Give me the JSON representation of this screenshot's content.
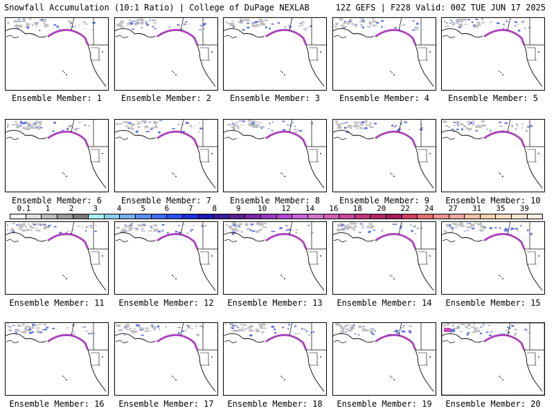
{
  "header": {
    "left": "Snowfall Accumulation (10:1 Ratio) | College of DuPage NEXLAB",
    "right": "12Z GEFS | F228 Valid: 00Z TUE JUN 17 2025"
  },
  "members": [
    {
      "label": "Ensemble Member: 1",
      "icon": "map-icon"
    },
    {
      "label": "Ensemble Member: 2",
      "icon": "map-icon"
    },
    {
      "label": "Ensemble Member: 3",
      "icon": "map-icon"
    },
    {
      "label": "Ensemble Member: 4",
      "icon": "map-icon"
    },
    {
      "label": "Ensemble Member: 5",
      "icon": "map-icon"
    },
    {
      "label": "Ensemble Member: 6",
      "icon": "map-icon"
    },
    {
      "label": "Ensemble Member: 7",
      "icon": "map-icon"
    },
    {
      "label": "Ensemble Member: 8",
      "icon": "map-icon"
    },
    {
      "label": "Ensemble Member: 9",
      "icon": "map-icon"
    },
    {
      "label": "Ensemble Member: 10",
      "icon": "map-icon"
    },
    {
      "label": "Ensemble Member: 11",
      "icon": "map-icon"
    },
    {
      "label": "Ensemble Member: 12",
      "icon": "map-icon"
    },
    {
      "label": "Ensemble Member: 13",
      "icon": "map-icon"
    },
    {
      "label": "Ensemble Member: 14",
      "icon": "map-icon"
    },
    {
      "label": "Ensemble Member: 15",
      "icon": "map-icon"
    },
    {
      "label": "Ensemble Member: 16",
      "icon": "map-icon"
    },
    {
      "label": "Ensemble Member: 17",
      "icon": "map-icon"
    },
    {
      "label": "Ensemble Member: 18",
      "icon": "map-icon"
    },
    {
      "label": "Ensemble Member: 19",
      "icon": "map-icon"
    },
    {
      "label": "Ensemble Member: 20",
      "icon": "map-icon"
    }
  ],
  "legend": {
    "ticks": [
      "0.1",
      "1",
      "2",
      "3",
      "4",
      "5",
      "6",
      "7",
      "8",
      "9",
      "10",
      "12",
      "14",
      "16",
      "18",
      "20",
      "22",
      "24",
      "27",
      "31",
      "35",
      "39"
    ],
    "colors": [
      "#ffffff",
      "#e0e0e0",
      "#bdbdbd",
      "#9a9a9a",
      "#7a7a7a",
      "#a8f0f0",
      "#8ecfee",
      "#74b0ee",
      "#5a8ff0",
      "#4070f0",
      "#2a50f0",
      "#1e30d8",
      "#1a1ab8",
      "#3a1a9a",
      "#5a2090",
      "#7a2aa8",
      "#9838c0",
      "#b048d0",
      "#c860d8",
      "#d070c8",
      "#d060b0",
      "#c84898",
      "#c03880",
      "#b02868",
      "#a81c58",
      "#d04060",
      "#e07070",
      "#f09090",
      "#f0a8a0",
      "#f5c0a8",
      "#f8d0b0",
      "#fadcc0",
      "#fce6d0",
      "#fdf0e0"
    ]
  },
  "colors": {
    "snow_gray": "#c0c0c0",
    "snow_blue": "#5a6ee8",
    "snow_purple": "#8a3ab8",
    "snow_magenta": "#c848b8",
    "border": "#000000"
  }
}
